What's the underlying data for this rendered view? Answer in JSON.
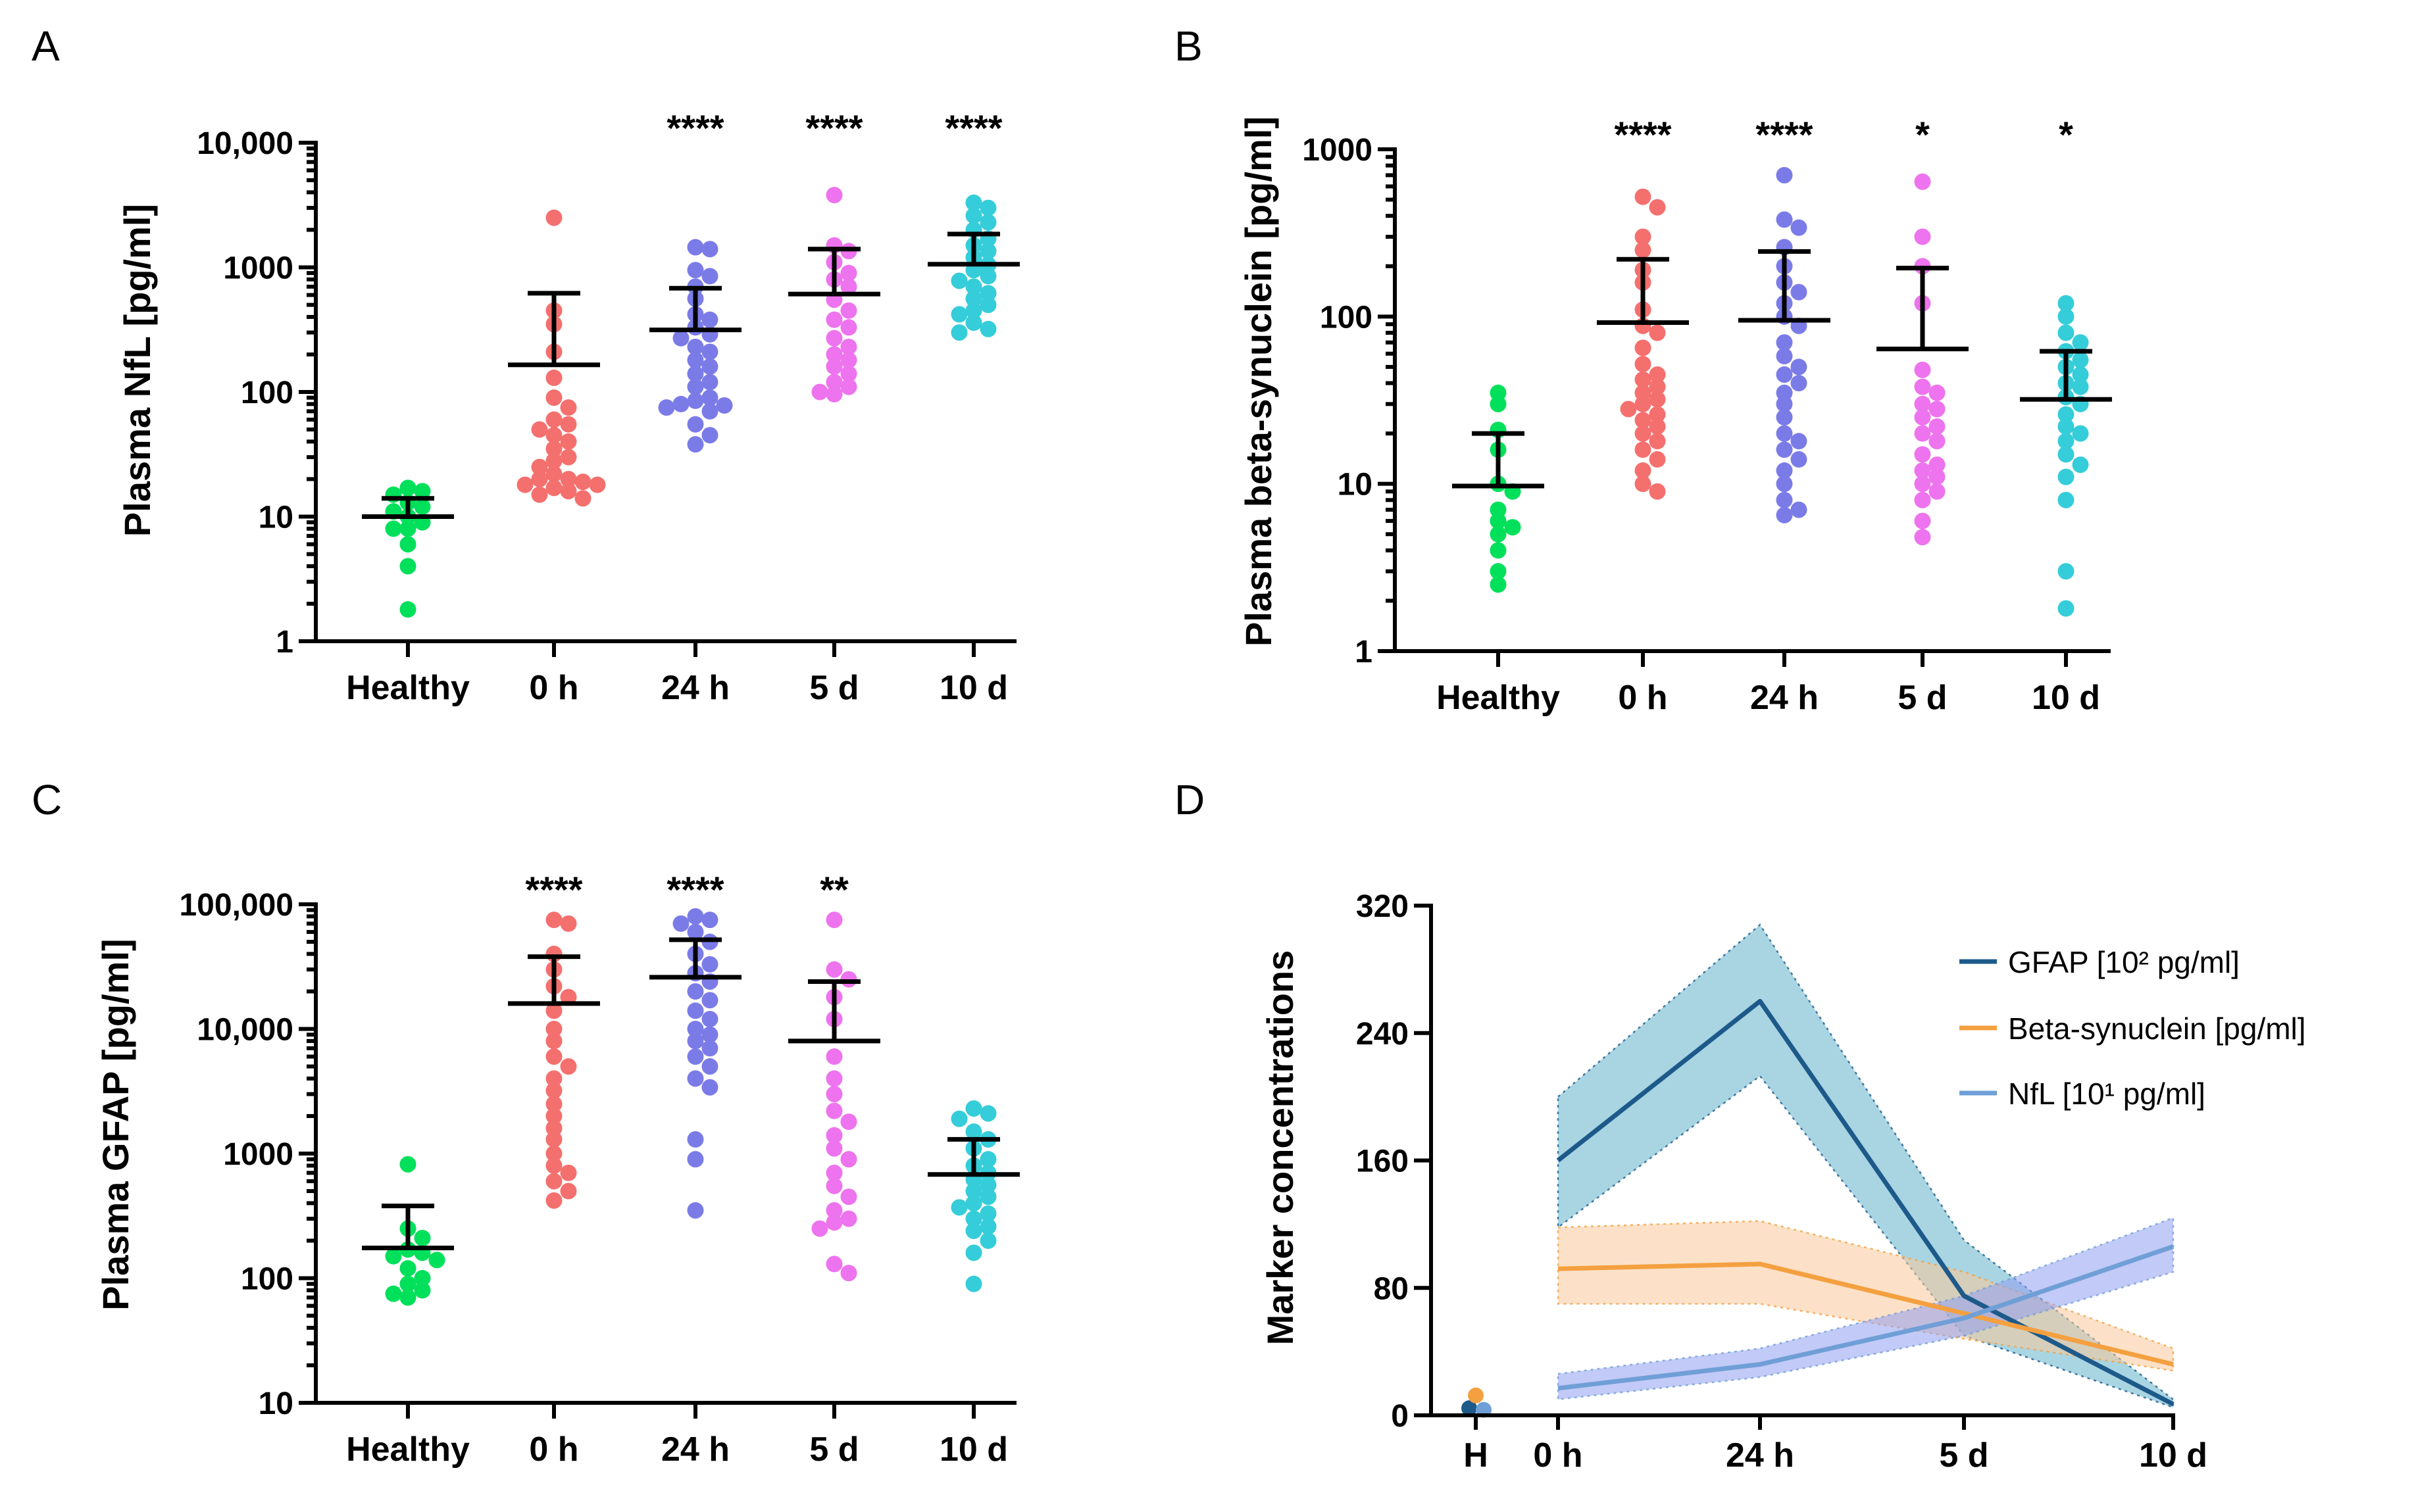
{
  "figure": {
    "panels": [
      "A",
      "B",
      "C",
      "D"
    ]
  },
  "chart_data": [
    {
      "panel": "A",
      "type": "scatter",
      "ylabel": "Plasma NfL [pg/ml]",
      "yscale": "log",
      "ylim": [
        1,
        10000
      ],
      "yticks": [
        1,
        10,
        100,
        1000,
        10000
      ],
      "yticklabels": [
        "1",
        "10",
        "100",
        "1000",
        "10,000"
      ],
      "categories": [
        "Healthy",
        "0 h",
        "24 h",
        "5 d",
        "10 d"
      ],
      "colors": [
        "#00e05a",
        "#f4706e",
        "#7b7be8",
        "#ee73ee",
        "#35cdd9"
      ],
      "significance": [
        "",
        "",
        "****",
        "****",
        "****"
      ],
      "means": [
        10,
        165,
        315,
        610,
        1060
      ],
      "sd_upper": [
        14,
        620,
        680,
        1400,
        1850
      ],
      "sd_lower": [
        null,
        null,
        null,
        null,
        null
      ],
      "points": [
        [
          17,
          15,
          16,
          13,
          12,
          11,
          10,
          9,
          8,
          8,
          6,
          4,
          1.8
        ],
        [
          2500,
          450,
          350,
          210,
          130,
          90,
          75,
          60,
          55,
          50,
          45,
          40,
          35,
          30,
          28,
          25,
          22,
          20,
          20,
          19,
          18,
          17,
          16,
          15,
          14,
          18
        ],
        [
          1450,
          1400,
          950,
          850,
          700,
          560,
          420,
          380,
          330,
          290,
          270,
          230,
          210,
          180,
          160,
          140,
          120,
          110,
          90,
          85,
          80,
          78,
          75,
          70,
          55,
          45,
          38
        ],
        [
          3800,
          1500,
          1350,
          1100,
          900,
          800,
          700,
          550,
          450,
          380,
          330,
          270,
          230,
          200,
          180,
          160,
          140,
          120,
          110,
          100,
          96
        ],
        [
          3300,
          3000,
          2600,
          2300,
          2000,
          1700,
          1500,
          1350,
          1200,
          1050,
          950,
          850,
          780,
          700,
          620,
          560,
          500,
          450,
          420,
          360,
          320,
          300
        ]
      ]
    },
    {
      "panel": "B",
      "type": "scatter",
      "ylabel": "Plasma beta-synuclein [pg/ml]",
      "yscale": "log",
      "ylim": [
        1,
        1000
      ],
      "yticks": [
        1,
        10,
        100,
        1000
      ],
      "yticklabels": [
        "1",
        "10",
        "100",
        "1000"
      ],
      "categories": [
        "Healthy",
        "0 h",
        "24 h",
        "5 d",
        "10 d"
      ],
      "colors": [
        "#00e05a",
        "#f4706e",
        "#7b7be8",
        "#ee73ee",
        "#35cdd9"
      ],
      "significance": [
        "",
        "****",
        "****",
        "*",
        "*"
      ],
      "means": [
        9.7,
        92,
        95,
        64,
        32
      ],
      "sd_upper": [
        20,
        220,
        245,
        195,
        62
      ],
      "sd_lower": [
        null,
        null,
        null,
        null,
        null
      ],
      "points": [
        [
          35,
          30,
          21,
          16,
          10,
          9,
          7,
          6,
          5.5,
          5,
          4,
          3,
          2.5
        ],
        [
          520,
          450,
          300,
          250,
          190,
          160,
          110,
          88,
          80,
          65,
          52,
          45,
          42,
          38,
          35,
          32,
          30,
          28,
          26,
          24,
          22,
          20,
          18,
          16,
          14,
          12,
          10,
          9
        ],
        [
          700,
          380,
          340,
          260,
          200,
          160,
          140,
          120,
          100,
          88,
          70,
          58,
          50,
          45,
          40,
          35,
          30,
          25,
          20,
          18,
          16,
          14,
          12,
          10,
          8,
          7,
          6.5
        ],
        [
          640,
          300,
          200,
          120,
          48,
          38,
          35,
          30,
          28,
          25,
          22,
          20,
          18,
          15,
          13,
          12,
          11,
          10,
          9,
          8,
          6,
          4.8
        ],
        [
          120,
          100,
          80,
          70,
          62,
          55,
          50,
          45,
          40,
          38,
          33,
          30,
          26,
          22,
          20,
          18,
          15,
          13,
          11,
          8,
          3,
          1.8
        ]
      ]
    },
    {
      "panel": "C",
      "type": "scatter",
      "ylabel": "Plasma GFAP [pg/ml]",
      "yscale": "log",
      "ylim": [
        10,
        100000
      ],
      "yticks": [
        10,
        100,
        1000,
        10000,
        100000
      ],
      "yticklabels": [
        "10",
        "100",
        "1000",
        "10,000",
        "100,000"
      ],
      "categories": [
        "Healthy",
        "0 h",
        "24 h",
        "5 d",
        "10 d"
      ],
      "colors": [
        "#00e05a",
        "#f4706e",
        "#7b7be8",
        "#ee73ee",
        "#35cdd9"
      ],
      "significance": [
        "",
        "****",
        "****",
        "**",
        ""
      ],
      "means": [
        175,
        16000,
        26000,
        8000,
        680
      ],
      "sd_upper": [
        380,
        38000,
        52000,
        24000,
        1300
      ],
      "sd_lower": [
        null,
        null,
        null,
        null,
        null
      ],
      "points": [
        [
          820,
          250,
          210,
          170,
          160,
          150,
          140,
          120,
          100,
          90,
          80,
          75,
          70
        ],
        [
          75000,
          70000,
          40000,
          30000,
          22000,
          18000,
          14000,
          10000,
          8000,
          6000,
          5000,
          4000,
          3200,
          2500,
          2000,
          1600,
          1300,
          1000,
          800,
          700,
          600,
          500,
          420
        ],
        [
          80000,
          75000,
          70000,
          60000,
          50000,
          40000,
          33000,
          28000,
          24000,
          20000,
          17000,
          14000,
          12000,
          10000,
          9000,
          8000,
          7000,
          6000,
          5000,
          4000,
          3400,
          1300,
          900,
          350
        ],
        [
          75000,
          30000,
          25000,
          18000,
          12000,
          6000,
          4000,
          3000,
          2200,
          1800,
          1400,
          1100,
          900,
          700,
          550,
          450,
          350,
          300,
          280,
          250,
          130,
          110
        ],
        [
          2300,
          2100,
          1900,
          1500,
          1300,
          1100,
          900,
          800,
          700,
          620,
          560,
          500,
          450,
          400,
          370,
          330,
          300,
          260,
          240,
          200,
          160,
          90
        ]
      ]
    },
    {
      "panel": "D",
      "type": "line",
      "ylabel": "Marker concentrations",
      "ylim": [
        0,
        320
      ],
      "yticks": [
        0,
        80,
        160,
        240,
        320
      ],
      "x_categories": [
        "H",
        "0 h",
        "24 h",
        "5 d",
        "10 d"
      ],
      "series": [
        {
          "name": "GFAP [10² pg/ml]",
          "color": "#1d5a8a",
          "band_color": "#63b3cc",
          "values": [
            160,
            260,
            75,
            7
          ],
          "upper": [
            200,
            308,
            110,
            10
          ],
          "lower": [
            118,
            213,
            50,
            5
          ],
          "healthy": 2
        },
        {
          "name": "Beta-synuclein [pg/ml]",
          "color": "#f4a040",
          "band_color": "#f9c99a",
          "values": [
            92,
            95,
            64,
            32
          ],
          "upper": [
            118,
            122,
            90,
            42
          ],
          "lower": [
            70,
            70,
            48,
            28
          ],
          "healthy": 10
        },
        {
          "name": "NfL [10¹ pg/ml]",
          "color": "#6f9fd6",
          "band_color": "#8f9ef0",
          "values": [
            17,
            32,
            61,
            106
          ],
          "upper": [
            26,
            42,
            75,
            124
          ],
          "lower": [
            10,
            24,
            50,
            90
          ],
          "healthy": 1
        }
      ]
    }
  ]
}
